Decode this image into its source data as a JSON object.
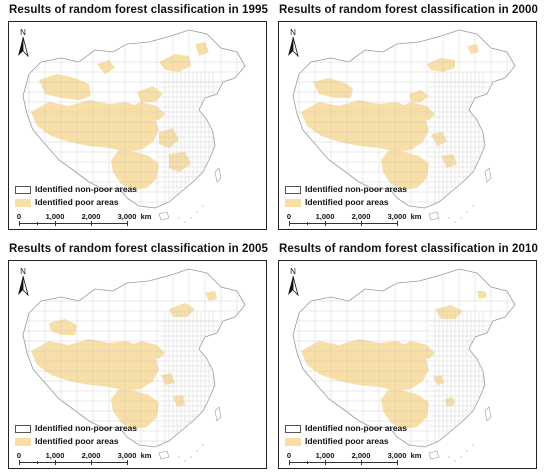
{
  "panels": [
    {
      "title": "Results of random forest classification in 1995",
      "year": 1995
    },
    {
      "title": "Results of random forest classification in 2000",
      "year": 2000
    },
    {
      "title": "Results of random forest classification in 2005",
      "year": 2005
    },
    {
      "title": "Results of random forest classification in 2010",
      "year": 2010
    }
  ],
  "north_label": "N",
  "legend": {
    "non_poor_label": "Identified non-poor areas",
    "poor_label": "Identified poor areas"
  },
  "scale": {
    "labels": [
      "0",
      "1,000",
      "2,000",
      "3,000"
    ],
    "unit": "km"
  },
  "colors": {
    "poor": "#f8dfa8",
    "non_poor": "#ffffff",
    "boundary": "#b8b8b8",
    "frame": "#222222"
  }
}
